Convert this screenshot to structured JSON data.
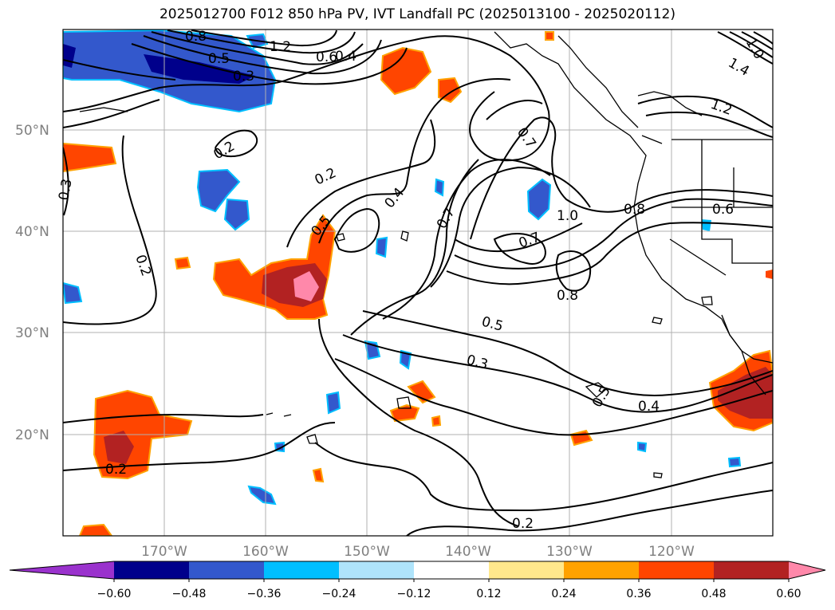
{
  "title": "2025012700 F012 850 hPa PV, IVT Landfall PC (2025013100 - 2025020112)",
  "map": {
    "lon_range": [
      -180,
      -110
    ],
    "lat_range": [
      10,
      60
    ],
    "lat_ticks": [
      {
        "value": 50,
        "label": "50°N"
      },
      {
        "value": 40,
        "label": "40°N"
      },
      {
        "value": 30,
        "label": "30°N"
      },
      {
        "value": 20,
        "label": "20°N"
      }
    ],
    "lon_ticks": [
      {
        "value": -170,
        "label": "170°W"
      },
      {
        "value": -160,
        "label": "160°W"
      },
      {
        "value": -150,
        "label": "150°W"
      },
      {
        "value": -140,
        "label": "140°W"
      },
      {
        "value": -130,
        "label": "130°W"
      },
      {
        "value": -120,
        "label": "120°W"
      }
    ],
    "grid": true,
    "contour_labels": [
      "0.8",
      "0.5",
      "0.3",
      "1.2",
      "0.6",
      "0.4",
      "0.2",
      "0.3",
      "0.2",
      "0.2",
      "0.4",
      "0.5",
      "0.7",
      "0.7",
      "1.0",
      "0.8",
      "0.6",
      "0.7",
      "0.8",
      "0.5",
      "0.3",
      "0.5",
      "0.4",
      "0.2",
      "0.2",
      "1.2",
      "1.4",
      "1.0"
    ]
  },
  "colorbar": {
    "colors": {
      "under": "#9a32cd",
      "bins": [
        "#00008b",
        "#3358cc",
        "#00bfff",
        "#afe4fb",
        "#ffffff",
        "#ffe88c",
        "#ffa200",
        "#ff4500",
        "#b22222"
      ],
      "over": "#ff88aa"
    },
    "tick_labels": [
      "−0.60",
      "−0.48",
      "−0.36",
      "−0.24",
      "−0.12",
      "0.12",
      "0.24",
      "0.36",
      "0.48",
      "0.60"
    ]
  }
}
